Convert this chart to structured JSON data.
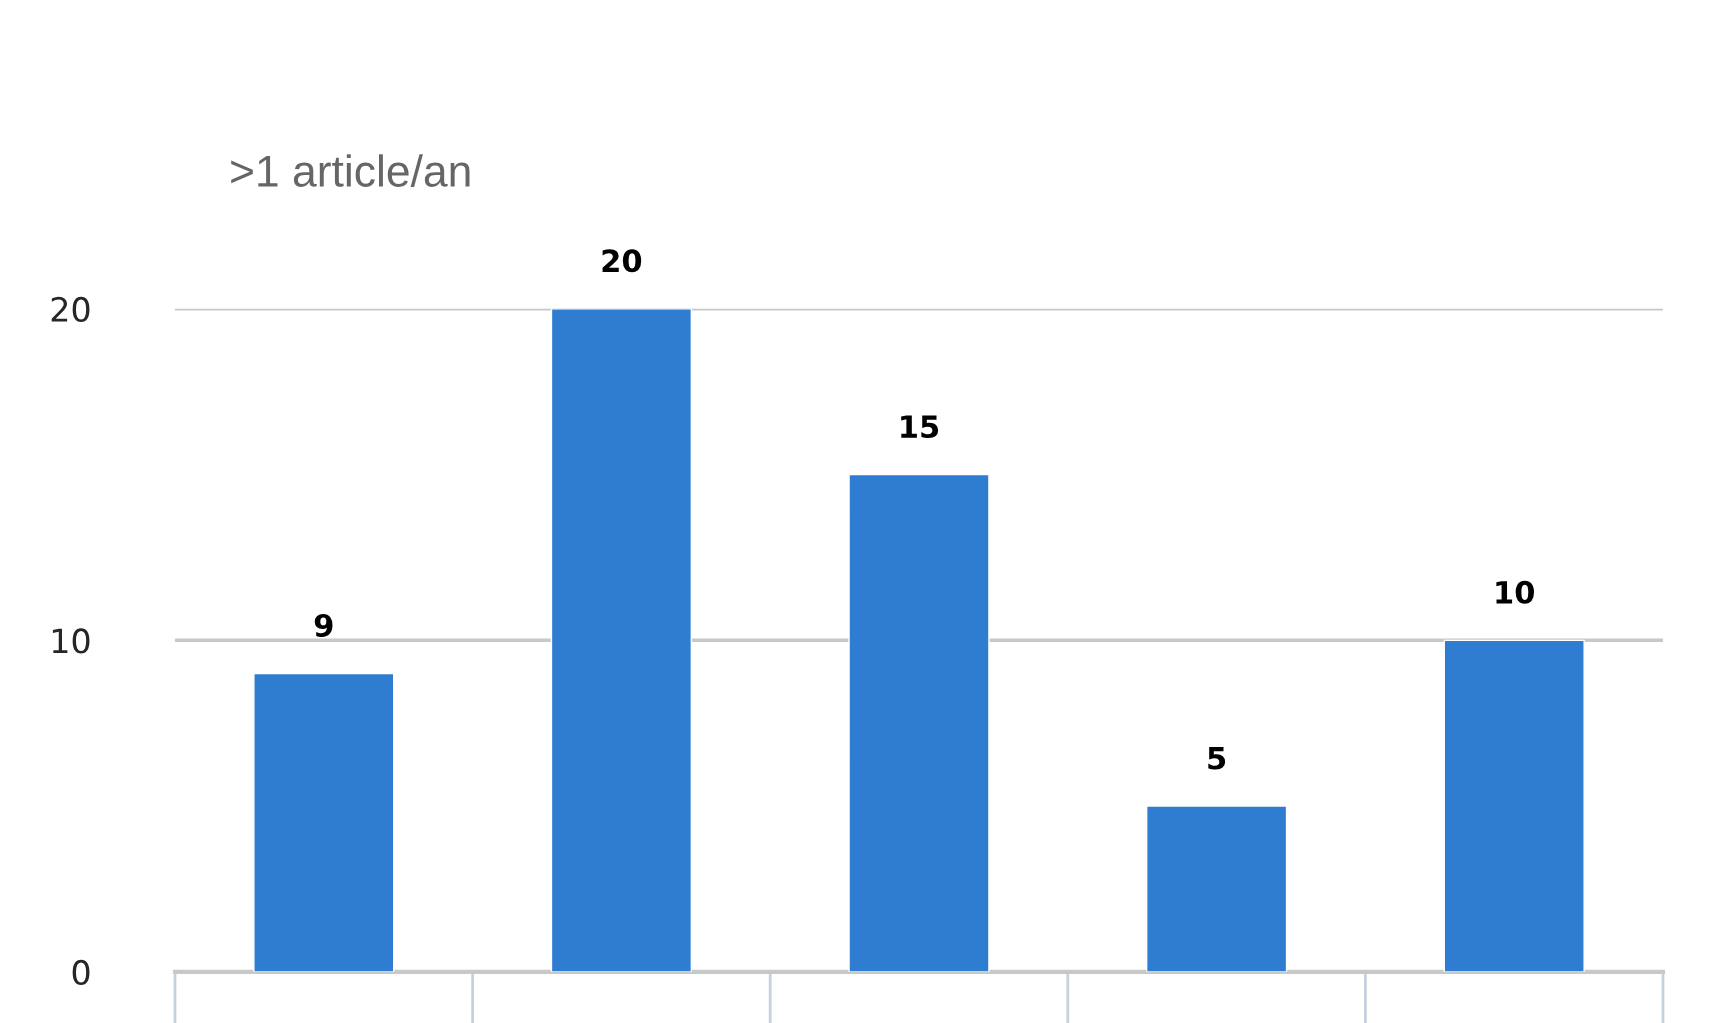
{
  "chart_data": {
    "type": "bar",
    "title": ">1 article/an",
    "categories": [
      null,
      null,
      null,
      null,
      null
    ],
    "values": [
      9,
      20,
      15,
      5,
      10
    ],
    "color": "#2e7dd1",
    "ylim": [
      0,
      20
    ],
    "yticks": [
      0,
      10,
      20
    ],
    "grid": "y",
    "data_labels": true
  }
}
